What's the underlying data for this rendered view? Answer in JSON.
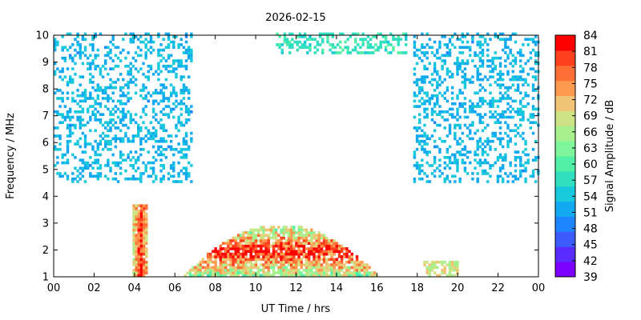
{
  "chart_data": {
    "type": "heatmap",
    "title": "2026-02-15",
    "xlabel": "UT Time / hrs",
    "ylabel": "Frequency / MHz",
    "colorbar_label": "Signal Amplitude / dB",
    "xlim": [
      0,
      24
    ],
    "ylim": [
      1,
      10
    ],
    "x_ticks": [
      "00",
      "02",
      "04",
      "06",
      "08",
      "10",
      "12",
      "14",
      "16",
      "18",
      "20",
      "22",
      "00"
    ],
    "y_ticks": [
      "1",
      "2",
      "3",
      "4",
      "5",
      "6",
      "7",
      "8",
      "9",
      "10"
    ],
    "colorbar_range": [
      39,
      84
    ],
    "colorbar_ticks": [
      "39",
      "42",
      "45",
      "48",
      "51",
      "54",
      "57",
      "60",
      "63",
      "66",
      "69",
      "72",
      "75",
      "78",
      "81",
      "84"
    ],
    "colorbar_colors": [
      "#7b00ff",
      "#5a2bff",
      "#3b5bff",
      "#1f84ff",
      "#12a9f0",
      "#18c8dc",
      "#2fdfc0",
      "#52f0a6",
      "#7ef59a",
      "#a8ef8e",
      "#cde384",
      "#f0c474",
      "#ff9a4e",
      "#ff6e35",
      "#ff3f1e",
      "#ff0000"
    ],
    "regions": [
      {
        "name": "night-scatter-am",
        "t": [
          0,
          6.8
        ],
        "f": [
          4.5,
          10
        ],
        "amp": [
          46,
          58
        ],
        "density": 0.3
      },
      {
        "name": "night-scatter-pm",
        "t": [
          17.8,
          24
        ],
        "f": [
          4.5,
          10
        ],
        "amp": [
          46,
          58
        ],
        "density": 0.3
      },
      {
        "name": "top-band-daytime",
        "t": [
          11,
          17.5
        ],
        "f": [
          9.3,
          10
        ],
        "amp": [
          52,
          62
        ],
        "density": 0.45
      },
      {
        "name": "dawn-plume",
        "t": [
          3.9,
          4.6
        ],
        "f": [
          1,
          3.7
        ],
        "amp": [
          60,
          82
        ],
        "density": 0.95
      },
      {
        "name": "daytime-dome",
        "t": [
          6.2,
          16
        ],
        "f": [
          1,
          2.9
        ],
        "amp": [
          52,
          84
        ],
        "density": 0.85
      },
      {
        "name": "dusk-patch",
        "t": [
          18.3,
          20
        ],
        "f": [
          1,
          1.6
        ],
        "amp": [
          58,
          76
        ],
        "density": 0.7
      }
    ]
  }
}
